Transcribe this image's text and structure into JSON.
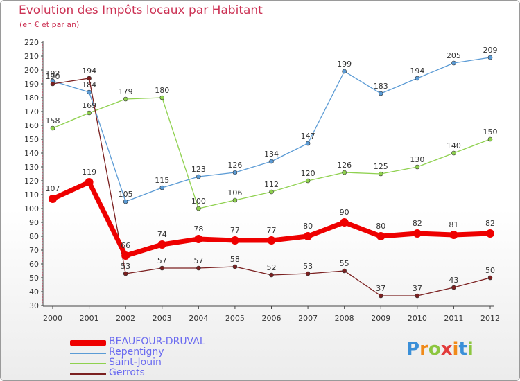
{
  "chart_data": {
    "type": "line",
    "title": "Evolution des Impôts locaux par Habitant",
    "subtitle": "(en € et par an)",
    "x": [
      "2000",
      "2001",
      "2002",
      "2003",
      "2004",
      "2005",
      "2006",
      "2007",
      "2008",
      "2009",
      "2010",
      "2011",
      "2012"
    ],
    "ylim": [
      30,
      220
    ],
    "yticks": [
      30,
      40,
      50,
      60,
      70,
      80,
      90,
      100,
      110,
      120,
      130,
      140,
      150,
      160,
      170,
      180,
      190,
      200,
      210,
      220
    ],
    "grid": false,
    "legend_position": "bottom-left",
    "series": [
      {
        "name": "Repentigny",
        "color": "#5b9bd5",
        "values": [
          192,
          184,
          105,
          115,
          123,
          126,
          134,
          147,
          199,
          183,
          194,
          205,
          209
        ],
        "labels": [
          "192",
          "184",
          "105",
          "115",
          "123",
          "126",
          "134",
          "147",
          "199",
          "183",
          "194",
          "205",
          "209"
        ]
      },
      {
        "name": "Saint-Jouin",
        "color": "#8fd14f",
        "values": [
          158,
          169,
          179,
          180,
          100,
          106,
          112,
          120,
          126,
          125,
          130,
          140,
          150
        ],
        "labels": [
          "158",
          "169",
          "179",
          "180",
          "100",
          "106",
          "112",
          "120",
          "126",
          "125",
          "130",
          "140",
          "150"
        ]
      },
      {
        "name": "Gerrots",
        "color": "#7b2020",
        "values": [
          190,
          194,
          53,
          57,
          57,
          58,
          52,
          53,
          55,
          37,
          37,
          43,
          50
        ],
        "labels": [
          "190",
          "194",
          "53",
          "57",
          "57",
          "58",
          "52",
          "53",
          "55",
          "37",
          "37",
          "43",
          "50"
        ]
      },
      {
        "name": "BEAUFOUR-DRUVAL",
        "color": "#ee0000",
        "values": [
          107,
          119,
          66,
          74,
          78,
          77,
          77,
          80,
          90,
          80,
          82,
          81,
          82
        ],
        "labels": [
          "107",
          "119",
          "66",
          "74",
          "78",
          "77",
          "77",
          "80",
          "90",
          "80",
          "82",
          "81",
          "82"
        ]
      }
    ],
    "legend": [
      {
        "name": "BEAUFOUR-DRUVAL",
        "color": "#ee0000"
      },
      {
        "name": "Repentigny",
        "color": "#5b9bd5"
      },
      {
        "name": "Saint-Jouin",
        "color": "#8fd14f"
      },
      {
        "name": "Gerrots",
        "color": "#7b2020"
      }
    ]
  },
  "brand": {
    "letters": [
      "P",
      "r",
      "o",
      "x",
      "i",
      "t",
      "i"
    ],
    "colors": [
      "#3a8fd8",
      "#f08a1a",
      "#8cc63f",
      "#e23b3b",
      "#f08a1a",
      "#3a8fd8",
      "#8cc63f"
    ]
  }
}
